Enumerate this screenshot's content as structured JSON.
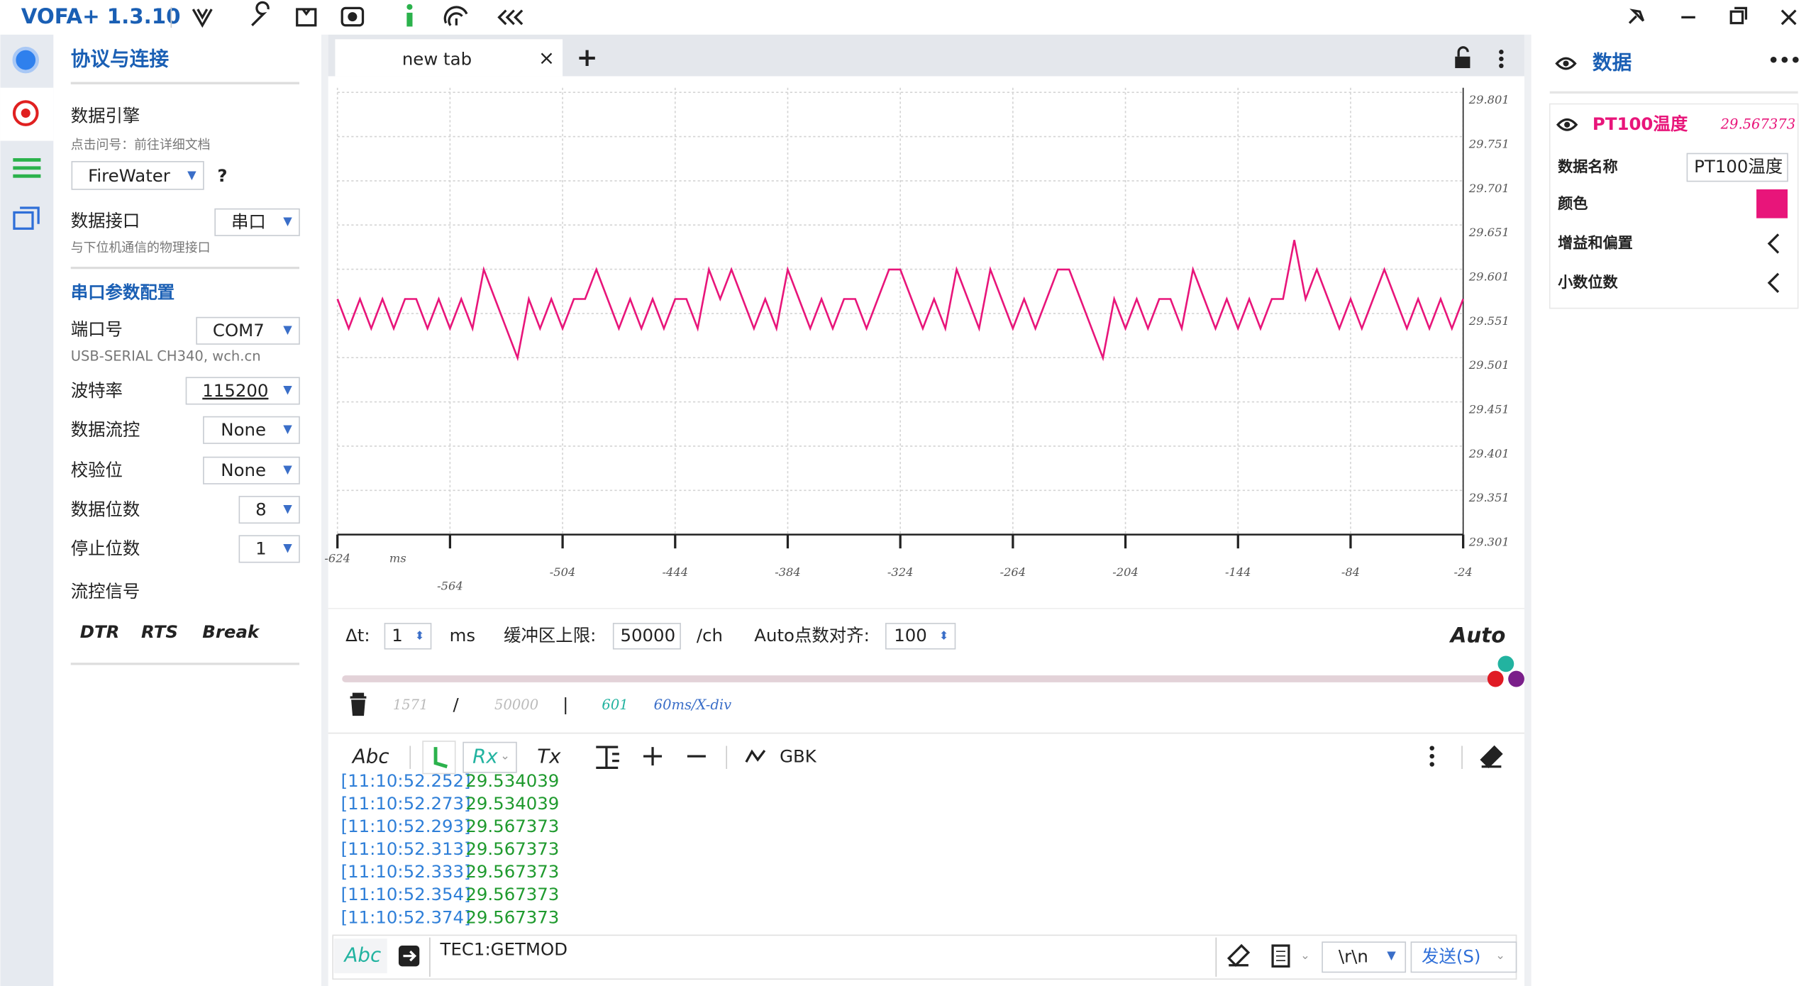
{
  "app": {
    "title": "VOFA+ 1.3.10"
  },
  "left_panel": {
    "title": "协议与连接",
    "engine_label": "数据引擎",
    "engine_hint": "点击问号：前往详细文档",
    "engine_value": "FireWater",
    "help": "?",
    "interface_label": "数据接口",
    "interface_value": "串口",
    "interface_hint": "与下位机通信的物理接口",
    "serial_title": "串口参数配置",
    "port_label": "端口号",
    "port_value": "COM7",
    "port_desc": "USB-SERIAL CH340, wch.cn",
    "baud_label": "波特率",
    "baud_value": "115200",
    "flow_label": "数据流控",
    "flow_value": "None",
    "parity_label": "校验位",
    "parity_value": "None",
    "databits_label": "数据位数",
    "databits_value": "8",
    "stopbits_label": "停止位数",
    "stopbits_value": "1",
    "signal_label": "流控信号",
    "signals": [
      "DTR",
      "RTS",
      "Break"
    ]
  },
  "tab": {
    "name": "new tab",
    "close": "×",
    "add": "+"
  },
  "chart_data": {
    "type": "line",
    "x_label": "ms",
    "x": [
      -624,
      -618,
      -612,
      -606,
      -600,
      -594,
      -588,
      -582,
      -576,
      -570,
      -564,
      -558,
      -552,
      -546,
      -540,
      -534,
      -528,
      -522,
      -516,
      -510,
      -504,
      -498,
      -492,
      -486,
      -480,
      -474,
      -468,
      -462,
      -456,
      -450,
      -444,
      -438,
      -432,
      -426,
      -420,
      -414,
      -408,
      -402,
      -396,
      -390,
      -384,
      -378,
      -372,
      -366,
      -360,
      -354,
      -348,
      -342,
      -336,
      -330,
      -324,
      -318,
      -312,
      -306,
      -300,
      -294,
      -288,
      -282,
      -276,
      -270,
      -264,
      -258,
      -252,
      -246,
      -240,
      -234,
      -228,
      -222,
      -216,
      -210,
      -204,
      -198,
      -192,
      -186,
      -180,
      -174,
      -168,
      -162,
      -156,
      -150,
      -144,
      -138,
      -132,
      -126,
      -120,
      -114,
      -108,
      -102,
      -96,
      -90,
      -84,
      -78,
      -72,
      -66,
      -60,
      -54,
      -48,
      -42,
      -36,
      -30,
      -24
    ],
    "series": [
      {
        "name": "PT100温度",
        "color": "#e8157a",
        "values": [
          29.567373,
          29.534039,
          29.567373,
          29.534039,
          29.567373,
          29.534039,
          29.567373,
          29.567373,
          29.534039,
          29.567373,
          29.534039,
          29.567373,
          29.534039,
          29.600707,
          29.567373,
          29.534039,
          29.500705,
          29.567373,
          29.534039,
          29.567373,
          29.534039,
          29.567373,
          29.567373,
          29.600707,
          29.567373,
          29.534039,
          29.567373,
          29.534039,
          29.567373,
          29.534039,
          29.567373,
          29.567373,
          29.534039,
          29.600707,
          29.567373,
          29.600707,
          29.567373,
          29.534039,
          29.567373,
          29.534039,
          29.600707,
          29.567373,
          29.534039,
          29.567373,
          29.534039,
          29.567373,
          29.567373,
          29.534039,
          29.567373,
          29.600707,
          29.600707,
          29.567373,
          29.534039,
          29.567373,
          29.534039,
          29.600707,
          29.567373,
          29.534039,
          29.600707,
          29.567373,
          29.534039,
          29.567373,
          29.534039,
          29.567373,
          29.600707,
          29.600707,
          29.567373,
          29.534039,
          29.500705,
          29.567373,
          29.534039,
          29.567373,
          29.534039,
          29.567373,
          29.567373,
          29.534039,
          29.600707,
          29.567373,
          29.534039,
          29.567373,
          29.534039,
          29.567373,
          29.534039,
          29.567373,
          29.567373,
          29.634041,
          29.567373,
          29.600707,
          29.567373,
          29.534039,
          29.567373,
          29.534039,
          29.567373,
          29.600707,
          29.567373,
          29.534039,
          29.567373,
          29.534039,
          29.567373,
          29.534039,
          29.567373
        ]
      }
    ],
    "xlim": [
      -624,
      -24
    ],
    "xticks": [
      -624,
      -564,
      -504,
      -444,
      -384,
      -324,
      -264,
      -204,
      -144,
      -84,
      -24
    ],
    "ylim": [
      29.301,
      29.801
    ],
    "yticks": [
      29.301,
      29.351,
      29.401,
      29.451,
      29.501,
      29.551,
      29.601,
      29.651,
      29.701,
      29.751,
      29.801
    ],
    "grid": true
  },
  "controls": {
    "dt_label": "Δt:",
    "dt_value": "1",
    "dt_unit": "ms",
    "buffer_label": "缓冲区上限:",
    "buffer_value": "50000",
    "buffer_unit": "/ch",
    "align_label": "Auto点数对齐:",
    "align_value": "100",
    "auto": "Auto"
  },
  "status": {
    "count": "1571",
    "sep1": "/",
    "limit": "50000",
    "sep2": "|",
    "points": "601",
    "div": "60ms/X-div"
  },
  "toolbar": {
    "abc": "Abc",
    "rx": "Rx",
    "tx": "Tx",
    "encoding": "GBK"
  },
  "log": [
    {
      "time": "[11:10:52.252]",
      "value": "29.534039"
    },
    {
      "time": "[11:10:52.273]",
      "value": "29.534039"
    },
    {
      "time": "[11:10:52.293]",
      "value": "29.567373"
    },
    {
      "time": "[11:10:52.313]",
      "value": "29.567373"
    },
    {
      "time": "[11:10:52.333]",
      "value": "29.567373"
    },
    {
      "time": "[11:10:52.354]",
      "value": "29.567373"
    },
    {
      "time": "[11:10:52.374]",
      "value": "29.567373"
    }
  ],
  "input": {
    "abc": "Abc",
    "text": "TEC1:GETMOD",
    "eol": "\\r\\n",
    "send": "发送(S)"
  },
  "right_panel": {
    "title": "数据",
    "more": "•••",
    "channel_value": "29.567373",
    "name_label": "数据名称",
    "color_label": "颜色",
    "gain_label": "增益和偏置",
    "decimals_label": "小数位数"
  }
}
